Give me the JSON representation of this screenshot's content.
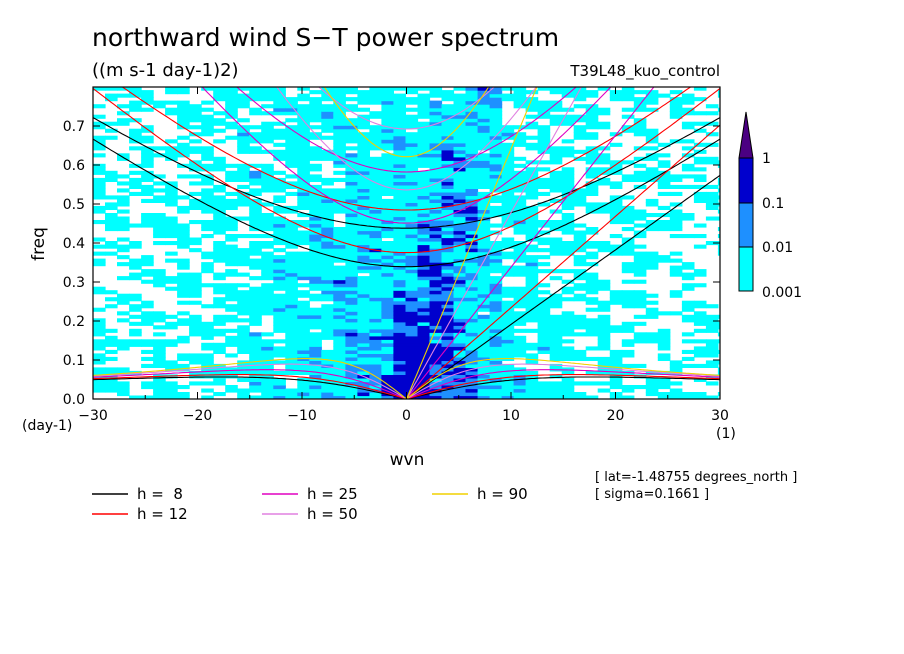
{
  "chart_data": {
    "type": "heatmap",
    "title": "northward wind S−T power spectrum",
    "subtitle": "((m s-1 day-1)2)",
    "run_label": "T39L48_kuo_control",
    "xlabel": "wvn",
    "ylabel": "freq",
    "x_unit": "(1)",
    "y_unit": "(day-1)",
    "xlim": [
      -30,
      30
    ],
    "ylim": [
      0,
      0.8
    ],
    "x_ticks": [
      -30,
      -20,
      -10,
      0,
      10,
      20,
      30
    ],
    "x_tick_labels": [
      "−30",
      "−20",
      "−10",
      "0",
      "10",
      "20",
      "30"
    ],
    "y_ticks": [
      0,
      0.1,
      0.2,
      0.3,
      0.4,
      0.5,
      0.6,
      0.7
    ],
    "y_tick_labels": [
      "0.0",
      "0.1",
      "0.2",
      "0.3",
      "0.4",
      "0.5",
      "0.6",
      "0.7"
    ],
    "colorbar": {
      "levels": [
        0.001,
        0.01,
        0.1,
        1
      ],
      "labels": [
        "0.001",
        "0.01",
        "0.1",
        "1"
      ],
      "colors": [
        "#00ffff",
        "#1e90ff",
        "#0000cd",
        "#4b0082"
      ]
    },
    "meta_lines": [
      "[ lat=-1.48755 degrees_north ]",
      "[ sigma=0.1661 ]"
    ],
    "dispersion_legend": [
      {
        "label": "h =  8",
        "color": "#000000",
        "h": 8
      },
      {
        "label": "h = 12",
        "color": "#ff0000",
        "h": 12
      },
      {
        "label": "h = 25",
        "color": "#e000c0",
        "h": 25
      },
      {
        "label": "h = 50",
        "color": "#e080e0",
        "h": 50
      },
      {
        "label": "h = 90",
        "color": "#f0d000",
        "h": 90
      }
    ]
  }
}
